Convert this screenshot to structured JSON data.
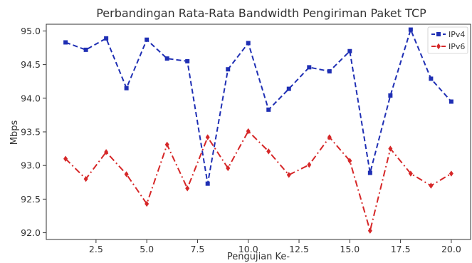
{
  "chart_data": {
    "type": "line",
    "title": "Perbandingan Rata-Rata Bandwidth Pengiriman Paket TCP",
    "xlabel": "Pengujian Ke-",
    "ylabel": "Mbps",
    "xlim": [
      0.05,
      20.95
    ],
    "ylim": [
      91.9,
      95.1
    ],
    "xticks": [
      2.5,
      5.0,
      7.5,
      10.0,
      12.5,
      15.0,
      17.5,
      20.0
    ],
    "xtick_labels": [
      "2.5",
      "5.0",
      "7.5",
      "10.0",
      "12.5",
      "15.0",
      "17.5",
      "20.0"
    ],
    "yticks": [
      92.0,
      92.5,
      93.0,
      93.5,
      94.0,
      94.5,
      95.0
    ],
    "ytick_labels": [
      "92.0",
      "92.5",
      "93.0",
      "93.5",
      "94.0",
      "94.5",
      "95.0"
    ],
    "grid": false,
    "legend_position": "top-right",
    "x": [
      1,
      2,
      3,
      4,
      5,
      6,
      7,
      8,
      9,
      10,
      11,
      12,
      13,
      14,
      15,
      16,
      17,
      18,
      19,
      20
    ],
    "series": [
      {
        "name": "IPv4",
        "color": "#1f2fb4",
        "marker": "square",
        "linestyle": "dashed",
        "values": [
          94.83,
          94.72,
          94.89,
          94.15,
          94.87,
          94.59,
          94.55,
          92.73,
          94.43,
          94.82,
          93.83,
          94.14,
          94.46,
          94.4,
          94.7,
          92.89,
          94.04,
          95.02,
          94.29,
          93.95
        ]
      },
      {
        "name": "IPv6",
        "color": "#d62728",
        "marker": "diamond",
        "linestyle": "dashdot",
        "values": [
          93.1,
          92.8,
          93.2,
          92.87,
          92.43,
          93.31,
          92.66,
          93.42,
          92.96,
          93.51,
          93.21,
          92.86,
          93.01,
          93.42,
          93.07,
          92.03,
          93.25,
          92.88,
          92.7,
          92.88
        ]
      }
    ]
  }
}
